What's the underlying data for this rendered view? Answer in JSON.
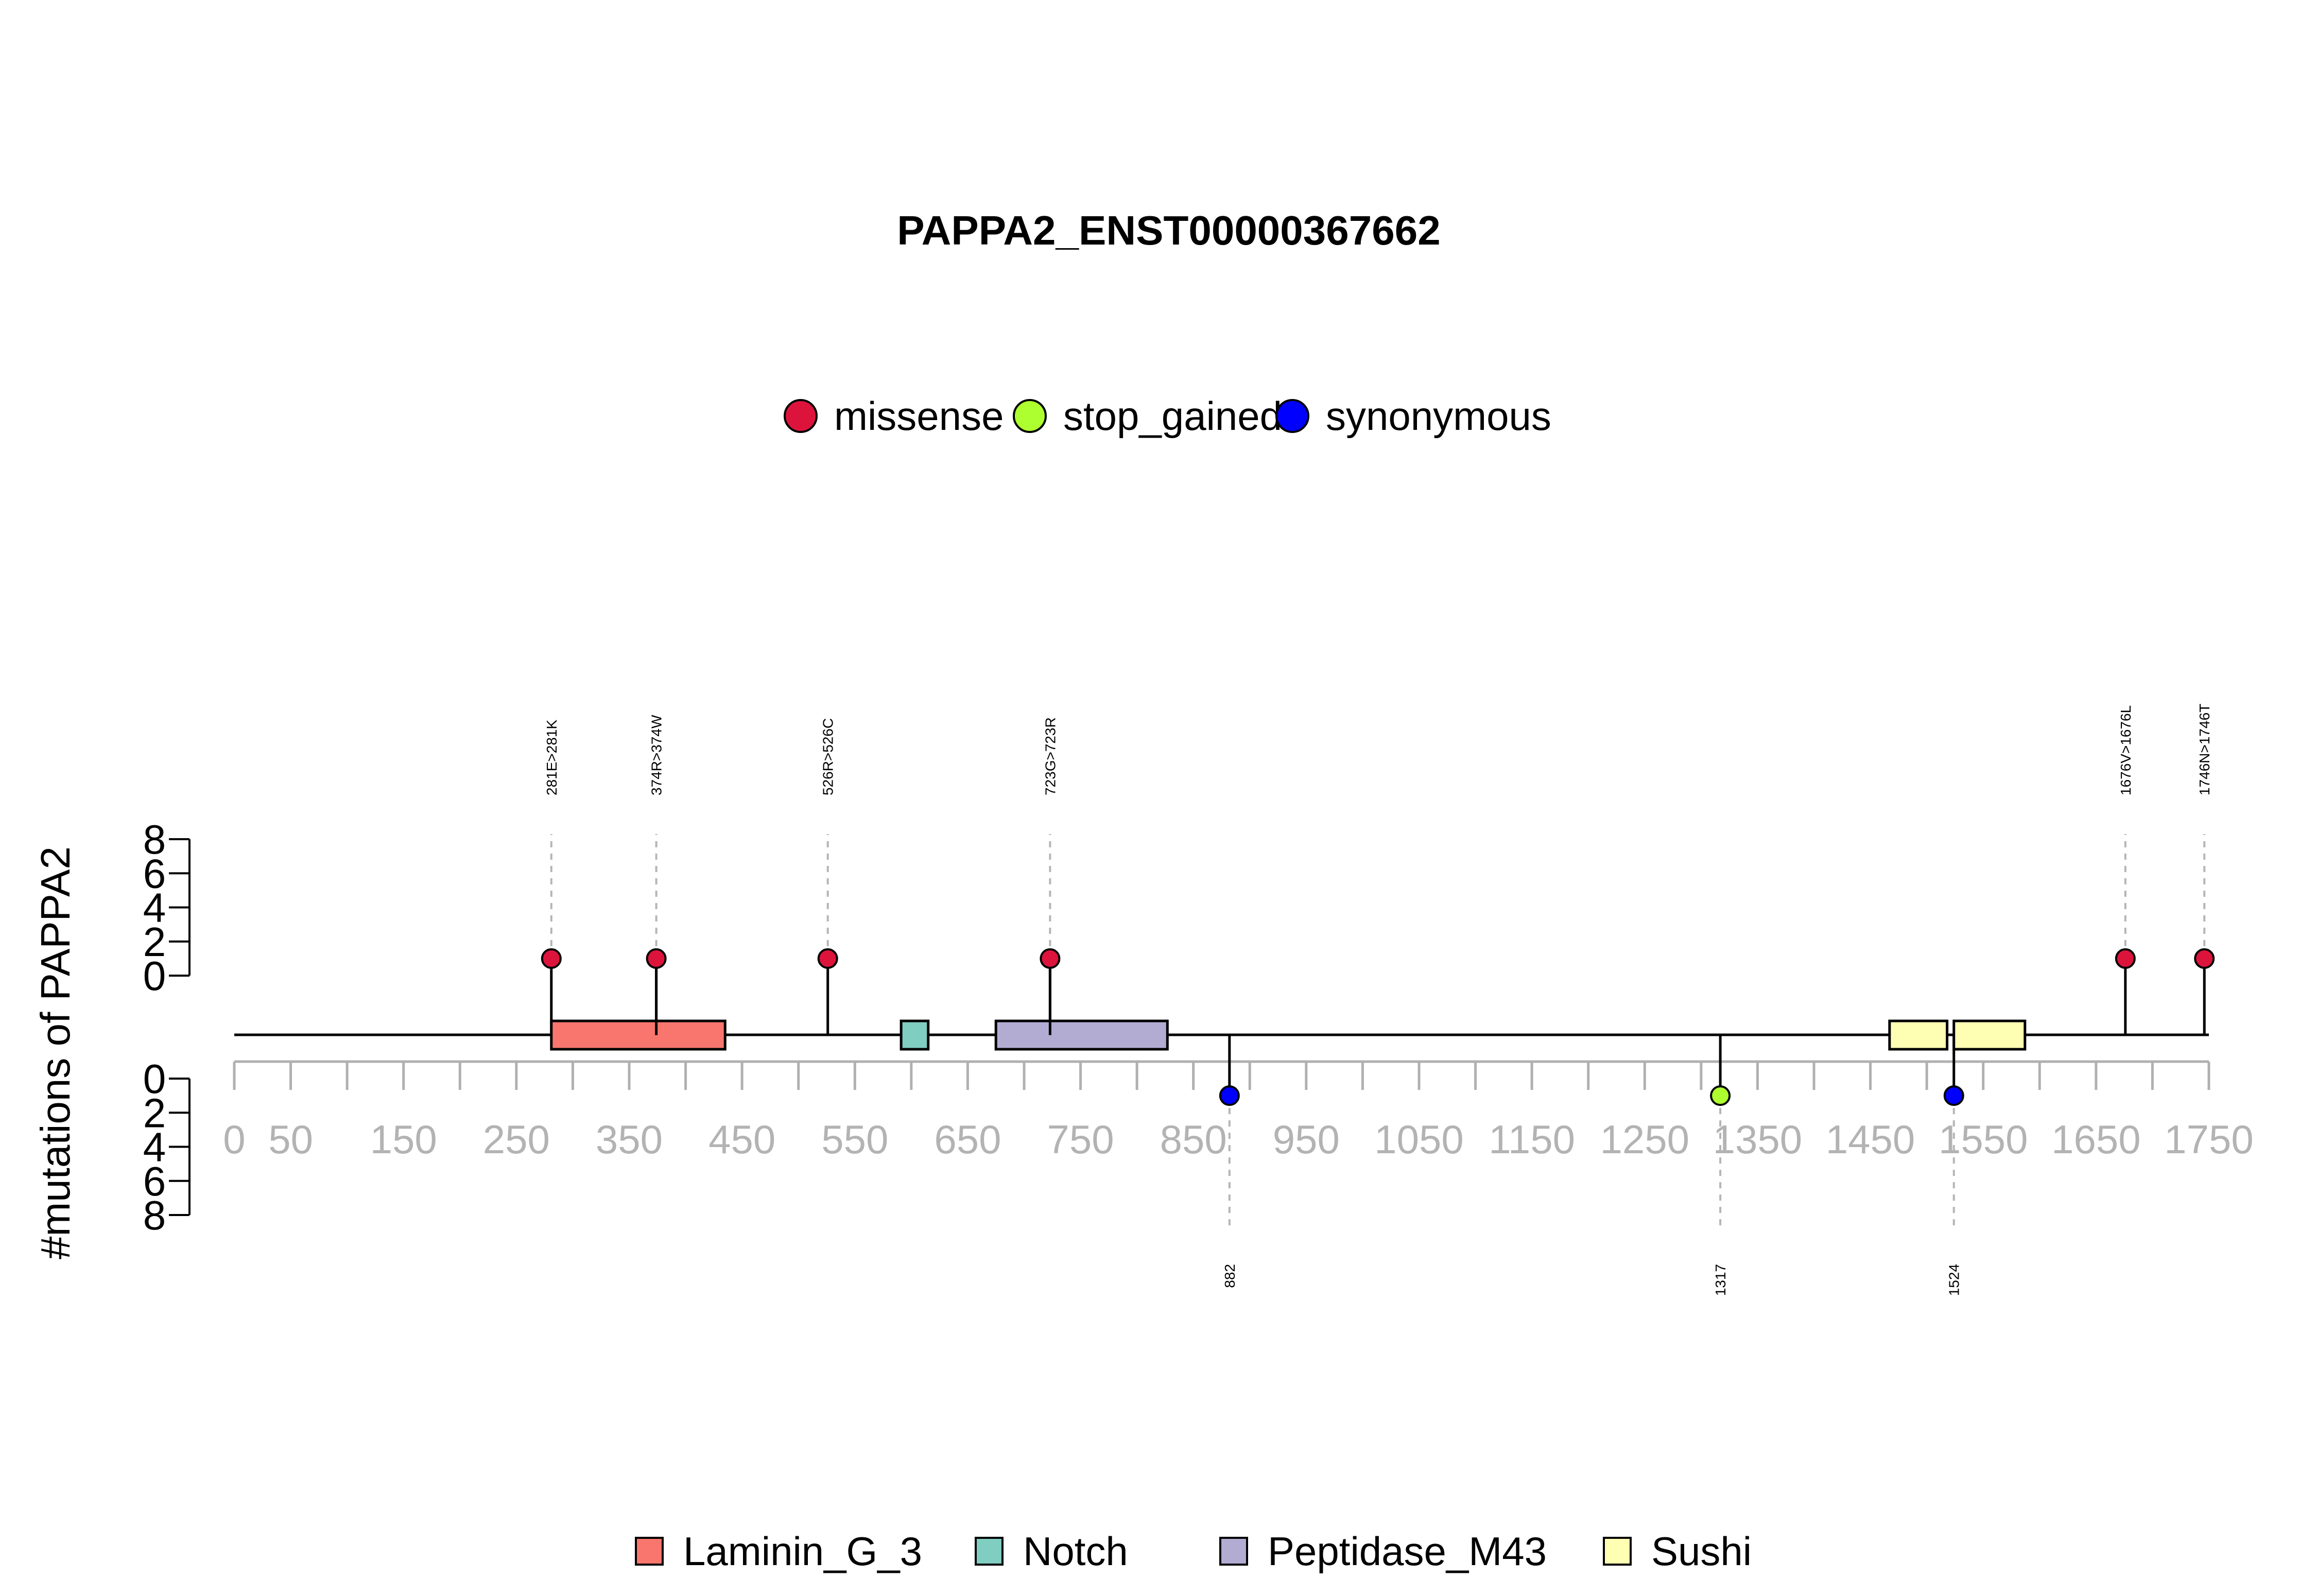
{
  "chart_data": {
    "type": "lollipop",
    "title": "PAPPA2_ENST00000367662",
    "ylabel": "#mutations of PAPPA2",
    "protein_length": 1750,
    "xlim": [
      0,
      1750
    ],
    "x_ticks": [
      0,
      50,
      150,
      250,
      350,
      450,
      550,
      650,
      750,
      850,
      950,
      1050,
      1150,
      1250,
      1350,
      1450,
      1550,
      1650,
      1750
    ],
    "y_ticks": [
      0,
      2,
      4,
      6,
      8
    ],
    "ylim": [
      0,
      8
    ],
    "mutation_legend": [
      {
        "name": "missense",
        "color": "#DC143C"
      },
      {
        "name": "stop_gained",
        "color": "#ADFF2F"
      },
      {
        "name": "synonymous",
        "color": "#0000FF"
      }
    ],
    "domain_legend": [
      {
        "name": "Laminin_G_3",
        "color": "#F8766D"
      },
      {
        "name": "Notch",
        "color": "#80CDC1"
      },
      {
        "name": "Peptidase_M43",
        "color": "#B2ABD2"
      },
      {
        "name": "Sushi",
        "color": "#FFFFB3"
      }
    ],
    "domains": [
      {
        "name": "Laminin_G_3",
        "start": 281,
        "end": 435
      },
      {
        "name": "Notch",
        "start": 591,
        "end": 615
      },
      {
        "name": "Peptidase_M43",
        "start": 675,
        "end": 827
      },
      {
        "name": "Sushi",
        "start": 1467,
        "end": 1518
      },
      {
        "name": "Sushi",
        "start": 1524,
        "end": 1587
      }
    ],
    "mutations_above": [
      {
        "position": 281,
        "label": "281E>281K",
        "count": 1,
        "type": "missense"
      },
      {
        "position": 374,
        "label": "374R>374W",
        "count": 1,
        "type": "missense"
      },
      {
        "position": 526,
        "label": "526R>526C",
        "count": 1,
        "type": "missense"
      },
      {
        "position": 723,
        "label": "723G>723R",
        "count": 1,
        "type": "missense"
      },
      {
        "position": 1676,
        "label": "1676V>1676L",
        "count": 1,
        "type": "missense"
      },
      {
        "position": 1746,
        "label": "1746N>1746T",
        "count": 1,
        "type": "missense"
      }
    ],
    "mutations_below": [
      {
        "position": 882,
        "label": "882",
        "count": 1,
        "type": "synonymous"
      },
      {
        "position": 1317,
        "label": "1317",
        "count": 1,
        "type": "stop_gained"
      },
      {
        "position": 1524,
        "label": "1524",
        "count": 1,
        "type": "synonymous"
      }
    ]
  }
}
